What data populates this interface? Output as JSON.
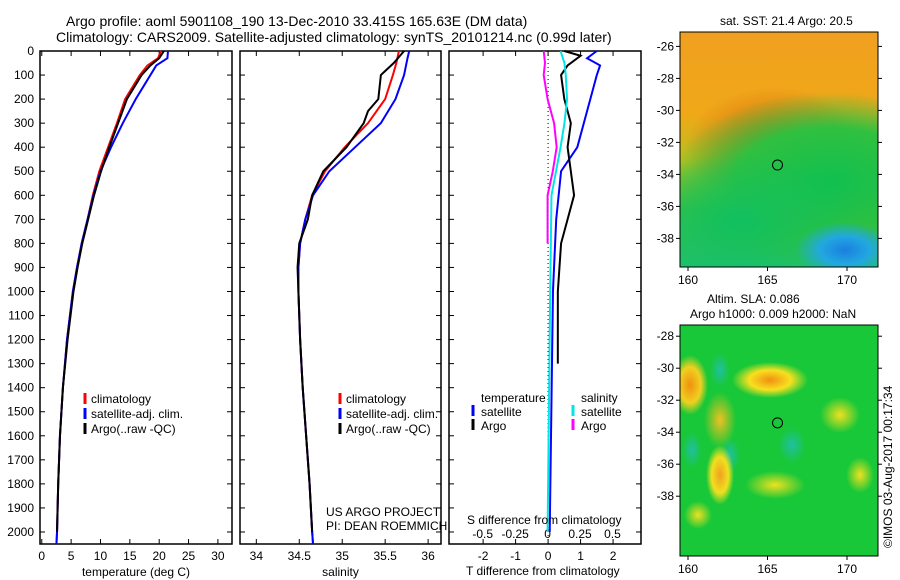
{
  "title_line1": "Argo profile: aoml 5901108_190 13-Dec-2010 33.415S 165.63E (DM data)",
  "title_line2": "Climatology: CARS2009. Satellite-adjusted climatology: synTS_20101214.nc (0.99d later)",
  "colors": {
    "climatology": "#ff0000",
    "satellite": "#0000ff",
    "argo": "#000000",
    "s_satellite": "#00e5e5",
    "s_argo": "#ff00ff"
  },
  "chart_data": [
    {
      "type": "line",
      "name": "temperature",
      "xlabel": "temperature (deg C)",
      "ylabel": "",
      "xlim": [
        -0.3,
        32.4
      ],
      "ylim": [
        2050,
        0
      ],
      "xticks": [
        0,
        5,
        10,
        15,
        20,
        25,
        30
      ],
      "yticks": [
        0,
        100,
        200,
        300,
        400,
        500,
        600,
        700,
        800,
        900,
        1000,
        1100,
        1200,
        1300,
        1400,
        1500,
        1600,
        1700,
        1800,
        1900,
        2000
      ],
      "legend": [
        "climatology",
        "satellite-adj. clim.",
        "Argo(..raw -QC)"
      ],
      "series": [
        {
          "name": "climatology",
          "color": "#ff0000",
          "depth": [
            0,
            30,
            60,
            100,
            200,
            300,
            400,
            500,
            600,
            700,
            800,
            900,
            1000,
            1200,
            1400,
            1600,
            1800,
            2000,
            2050
          ],
          "values": [
            20.3,
            19.8,
            18,
            16.7,
            14.2,
            12.8,
            11.3,
            9.8,
            8.7,
            7.8,
            6.8,
            6,
            5.3,
            4.3,
            3.6,
            3.1,
            2.8,
            2.6,
            2.5
          ]
        },
        {
          "name": "satellite-adj. clim.",
          "color": "#0000ff",
          "depth": [
            0,
            30,
            60,
            100,
            200,
            300,
            400,
            500,
            600,
            700,
            800,
            900,
            1000,
            1200,
            1400,
            1600,
            1800,
            2000,
            2050
          ],
          "values": [
            21.5,
            21.4,
            19.5,
            18.5,
            16,
            13.8,
            11.8,
            10,
            8.8,
            7.8,
            6.8,
            6,
            5.3,
            4.3,
            3.6,
            3.1,
            2.8,
            2.6,
            2.5
          ]
        },
        {
          "name": "Argo(..raw -QC)",
          "color": "#000000",
          "depth": [
            0,
            30,
            60,
            100,
            200,
            300,
            400,
            500,
            600,
            700,
            800,
            900,
            1000,
            1200,
            1400,
            1600,
            1800,
            2000
          ],
          "values": [
            20.8,
            20,
            18.5,
            17,
            14.5,
            13,
            11.5,
            10.1,
            8.9,
            7.9,
            6.9,
            6.1,
            5.4,
            4.4,
            3.6,
            3.1,
            2.8,
            2.6
          ]
        }
      ]
    },
    {
      "type": "line",
      "name": "salinity",
      "xlabel": "salinity",
      "xlim": [
        33.81,
        36.15
      ],
      "ylim": [
        2050,
        0
      ],
      "xticks": [
        34,
        34.5,
        35,
        35.5,
        36
      ],
      "legend": [
        "climatology",
        "satellite-adj. clim.",
        "Argo(..raw -QC)"
      ],
      "annotations": [
        "US ARGO PROJECT",
        "PI: DEAN ROEMMICH"
      ],
      "series": [
        {
          "name": "climatology",
          "color": "#ff0000",
          "depth": [
            0,
            50,
            100,
            200,
            300,
            400,
            500,
            600,
            700,
            800,
            900,
            1000,
            1200,
            1400,
            1600,
            1800,
            2000,
            2050
          ],
          "values": [
            35.66,
            35.63,
            35.59,
            35.5,
            35.3,
            35.03,
            34.8,
            34.65,
            34.57,
            34.51,
            34.49,
            34.49,
            34.51,
            34.54,
            34.58,
            34.62,
            34.65,
            34.66
          ]
        },
        {
          "name": "satellite-adj. clim.",
          "color": "#0000ff",
          "depth": [
            0,
            30,
            100,
            200,
            300,
            400,
            500,
            600,
            700,
            800,
            900,
            1000,
            1200,
            1400,
            1600,
            1800,
            2000,
            2050
          ],
          "values": [
            35.78,
            35.76,
            35.72,
            35.62,
            35.45,
            35.15,
            34.85,
            34.66,
            34.57,
            34.51,
            34.49,
            34.49,
            34.51,
            34.54,
            34.58,
            34.62,
            34.65,
            34.66
          ]
        },
        {
          "name": "Argo(..raw -QC)",
          "color": "#000000",
          "depth": [
            0,
            50,
            100,
            200,
            250,
            300,
            400,
            500,
            600,
            700,
            800,
            900,
            1000,
            1200,
            1400,
            1600,
            1800,
            2000
          ],
          "values": [
            35.72,
            35.6,
            35.45,
            35.42,
            35.3,
            35.25,
            35.05,
            34.78,
            34.65,
            34.6,
            34.5,
            34.48,
            34.49,
            34.51,
            34.54,
            34.58,
            34.62,
            34.65
          ]
        }
      ]
    },
    {
      "type": "line",
      "name": "difference",
      "xlabel": "T difference from climatology",
      "x2label": "S difference from climatology",
      "xlim": [
        -3.05,
        2.86
      ],
      "x2lim": [
        -0.76,
        0.72
      ],
      "ylim": [
        2050,
        0
      ],
      "xticks": [
        -2,
        -1,
        0,
        1,
        2
      ],
      "x2ticks": [
        "-0.5",
        "-0.25",
        "0",
        "0.25",
        "0.5"
      ],
      "legend_temperature": {
        "title": "temperature",
        "items": [
          "satellite",
          "Argo"
        ]
      },
      "legend_salinity": {
        "title": "salinity",
        "items": [
          "satellite",
          "Argo"
        ]
      },
      "series": [
        {
          "name": "T satellite",
          "axis": "T",
          "color": "#0000ff",
          "depth": [
            0,
            30,
            60,
            100,
            200,
            300,
            400,
            500,
            700,
            1000,
            1500,
            2000
          ],
          "values": [
            1.5,
            1.2,
            1.6,
            1.5,
            1.3,
            1.1,
            0.9,
            0.4,
            0.25,
            0.15,
            0.1,
            0.05
          ]
        },
        {
          "name": "T Argo",
          "axis": "T",
          "color": "#000000",
          "depth": [
            0,
            20,
            60,
            100,
            200,
            300,
            400,
            500,
            600,
            700,
            800,
            1000,
            1200,
            1300
          ],
          "values": [
            0.5,
            1,
            0.6,
            0.4,
            0.5,
            0.7,
            0.6,
            0.7,
            0.8,
            0.6,
            0.4,
            0.3,
            0.3,
            0.3
          ]
        },
        {
          "name": "S satellite",
          "axis": "S",
          "color": "#00e5e5",
          "depth": [
            0,
            50,
            100,
            200,
            300,
            400,
            600,
            1000,
            2000
          ],
          "values": [
            0.1,
            0.13,
            0.14,
            0.15,
            0.13,
            0.1,
            0.03,
            0.02,
            0
          ]
        },
        {
          "name": "S Argo",
          "axis": "S",
          "color": "#ff00ff",
          "depth": [
            0,
            50,
            100,
            200,
            300,
            400,
            500,
            600,
            800
          ],
          "values": [
            -0.03,
            -0.02,
            -0.03,
            0,
            0.05,
            0.07,
            0.04,
            0,
            0
          ]
        }
      ]
    }
  ],
  "maps": [
    {
      "title": "sat. SST: 21.4 Argo: 20.5",
      "lon_ticks": [
        "160",
        "165",
        "170"
      ],
      "lat_ticks": [
        "-26",
        "-28",
        "-30",
        "-32",
        "-34",
        "-36",
        "-38"
      ],
      "marker": {
        "lon": 165.63,
        "lat": -33.415
      }
    },
    {
      "title_line1": "Altim. SLA: 0.086",
      "title_line2": "Argo h1000: 0.009 h2000: NaN",
      "lon_ticks": [
        "160",
        "165",
        "170"
      ],
      "lat_ticks": [
        "-28",
        "-30",
        "-32",
        "-34",
        "-36",
        "-38"
      ],
      "marker": {
        "lon": 165.63,
        "lat": -33.415
      }
    }
  ],
  "copyright": "©IMOS 03-Aug-2017 00:17:34"
}
